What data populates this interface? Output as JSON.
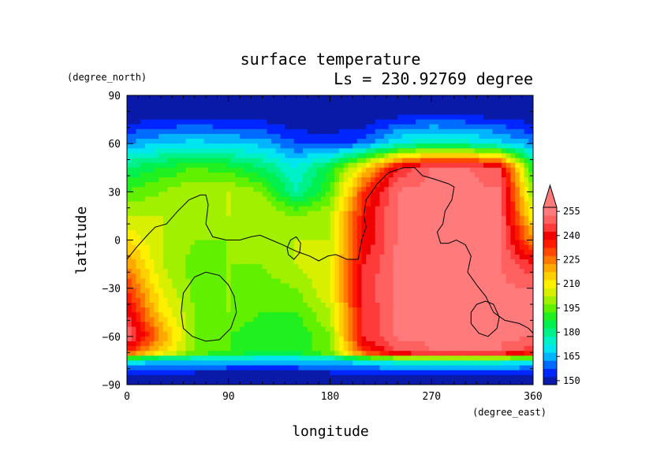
{
  "chart_data": {
    "type": "heatmap",
    "title": "surface temperature",
    "subtitle": "Ls = 230.92769 degree",
    "xlabel": "longitude",
    "ylabel": "latitude",
    "x_unit": "(degree_east)",
    "y_unit": "(degree_north)",
    "xlim": [
      0,
      360
    ],
    "ylim": [
      -90,
      90
    ],
    "x_ticks": [
      "0",
      "90",
      "180",
      "270",
      "360"
    ],
    "y_ticks": [
      "90",
      "60",
      "30",
      "0",
      "−30",
      "−60",
      "−90"
    ],
    "x_tick_values": [
      0,
      90,
      180,
      270,
      360
    ],
    "y_tick_values": [
      90,
      60,
      30,
      0,
      -30,
      -60,
      -90
    ],
    "grid": false,
    "legend_placement": "right",
    "colorbar": {
      "levels": [
        150,
        155,
        160,
        165,
        170,
        175,
        180,
        185,
        190,
        195,
        200,
        205,
        210,
        215,
        220,
        225,
        230,
        235,
        240,
        245,
        250,
        255,
        260
      ],
      "labels": [
        "255",
        "240",
        "225",
        "210",
        "195",
        "180",
        "165",
        "150"
      ],
      "label_values": [
        255,
        240,
        225,
        210,
        195,
        180,
        165,
        150
      ],
      "colors": [
        "#0a1aa8",
        "#0026ff",
        "#006cff",
        "#00b4ff",
        "#00e6f0",
        "#00f0c8",
        "#00f08a",
        "#00f050",
        "#20f020",
        "#60f000",
        "#a0f000",
        "#d8f000",
        "#fff000",
        "#ffd000",
        "#ffa800",
        "#ff7800",
        "#ff4800",
        "#ff1a00",
        "#f00000",
        "#ff3a3a",
        "#ff6060",
        "#ff7a7a"
      ],
      "extend_max": true
    },
    "field_samples": {
      "description_lat": [
        85,
        60,
        45,
        30,
        15,
        0,
        -15,
        -30,
        -45,
        -60,
        -70,
        -75,
        -85
      ],
      "lon": [
        0,
        30,
        60,
        90,
        120,
        150,
        180,
        210,
        240,
        270,
        300,
        330,
        360
      ],
      "values": [
        [
          145,
          145,
          145,
          145,
          145,
          145,
          145,
          145,
          145,
          145,
          145,
          145,
          145
        ],
        [
          165,
          170,
          172,
          170,
          168,
          160,
          158,
          162,
          175,
          180,
          178,
          172,
          165
        ],
        [
          185,
          190,
          195,
          192,
          185,
          175,
          190,
          215,
          245,
          256,
          256,
          250,
          190
        ],
        [
          195,
          200,
          205,
          205,
          200,
          180,
          195,
          235,
          256,
          256,
          256,
          256,
          200
        ],
        [
          205,
          205,
          200,
          205,
          205,
          200,
          205,
          240,
          256,
          256,
          256,
          256,
          210
        ],
        [
          215,
          205,
          200,
          200,
          200,
          205,
          205,
          240,
          256,
          256,
          256,
          256,
          225
        ],
        [
          225,
          205,
          198,
          200,
          200,
          205,
          210,
          245,
          256,
          256,
          256,
          256,
          245
        ],
        [
          235,
          210,
          198,
          200,
          198,
          200,
          210,
          248,
          256,
          256,
          256,
          256,
          255
        ],
        [
          245,
          215,
          200,
          200,
          195,
          195,
          205,
          245,
          256,
          256,
          256,
          256,
          256
        ],
        [
          255,
          225,
          200,
          195,
          190,
          190,
          200,
          245,
          256,
          256,
          256,
          256,
          256
        ],
        [
          235,
          215,
          200,
          195,
          190,
          190,
          200,
          235,
          250,
          255,
          255,
          255,
          245
        ],
        [
          175,
          172,
          170,
          168,
          168,
          168,
          170,
          175,
          180,
          180,
          180,
          180,
          175
        ],
        [
          150,
          150,
          150,
          150,
          150,
          150,
          150,
          150,
          150,
          150,
          150,
          150,
          150
        ]
      ]
    },
    "contours": [
      [
        [
          0,
          -12
        ],
        [
          8,
          -5
        ],
        [
          18,
          3
        ],
        [
          25,
          8
        ],
        [
          35,
          10
        ],
        [
          45,
          18
        ],
        [
          55,
          25
        ],
        [
          65,
          28
        ],
        [
          70,
          28
        ],
        [
          72,
          22
        ],
        [
          70,
          10
        ],
        [
          76,
          2
        ],
        [
          88,
          0
        ],
        [
          100,
          0
        ],
        [
          110,
          2
        ],
        [
          118,
          3
        ],
        [
          128,
          0
        ],
        [
          138,
          -3
        ],
        [
          150,
          -7
        ],
        [
          162,
          -10
        ],
        [
          170,
          -13
        ],
        [
          178,
          -10
        ],
        [
          185,
          -9
        ],
        [
          195,
          -12
        ],
        [
          205,
          -12
        ],
        [
          208,
          0
        ],
        [
          212,
          8
        ],
        [
          210,
          15
        ],
        [
          212,
          25
        ],
        [
          222,
          35
        ],
        [
          232,
          42
        ],
        [
          245,
          45
        ],
        [
          255,
          45
        ],
        [
          262,
          40
        ],
        [
          272,
          38
        ],
        [
          285,
          35
        ],
        [
          290,
          33
        ],
        [
          288,
          25
        ],
        [
          282,
          18
        ],
        [
          280,
          10
        ],
        [
          275,
          5
        ],
        [
          278,
          -2
        ],
        [
          285,
          -2
        ],
        [
          292,
          0
        ],
        [
          300,
          -3
        ],
        [
          305,
          -10
        ],
        [
          302,
          -20
        ],
        [
          310,
          -28
        ],
        [
          318,
          -35
        ],
        [
          325,
          -45
        ],
        [
          335,
          -50
        ],
        [
          348,
          -52
        ],
        [
          356,
          -55
        ],
        [
          360,
          -58
        ]
      ],
      [
        [
          48,
          -45
        ],
        [
          50,
          -33
        ],
        [
          60,
          -23
        ],
        [
          70,
          -20
        ],
        [
          82,
          -22
        ],
        [
          90,
          -28
        ],
        [
          95,
          -35
        ],
        [
          97,
          -45
        ],
        [
          92,
          -55
        ],
        [
          82,
          -62
        ],
        [
          70,
          -63
        ],
        [
          58,
          -60
        ],
        [
          50,
          -55
        ],
        [
          48,
          -45
        ]
      ],
      [
        [
          305,
          -45
        ],
        [
          310,
          -40
        ],
        [
          318,
          -38
        ],
        [
          325,
          -40
        ],
        [
          330,
          -48
        ],
        [
          328,
          -55
        ],
        [
          320,
          -60
        ],
        [
          312,
          -58
        ],
        [
          305,
          -52
        ],
        [
          305,
          -45
        ]
      ],
      [
        [
          142,
          -5
        ],
        [
          145,
          0
        ],
        [
          150,
          2
        ],
        [
          154,
          -2
        ],
        [
          153,
          -8
        ],
        [
          148,
          -12
        ],
        [
          143,
          -9
        ],
        [
          142,
          -5
        ]
      ]
    ]
  }
}
